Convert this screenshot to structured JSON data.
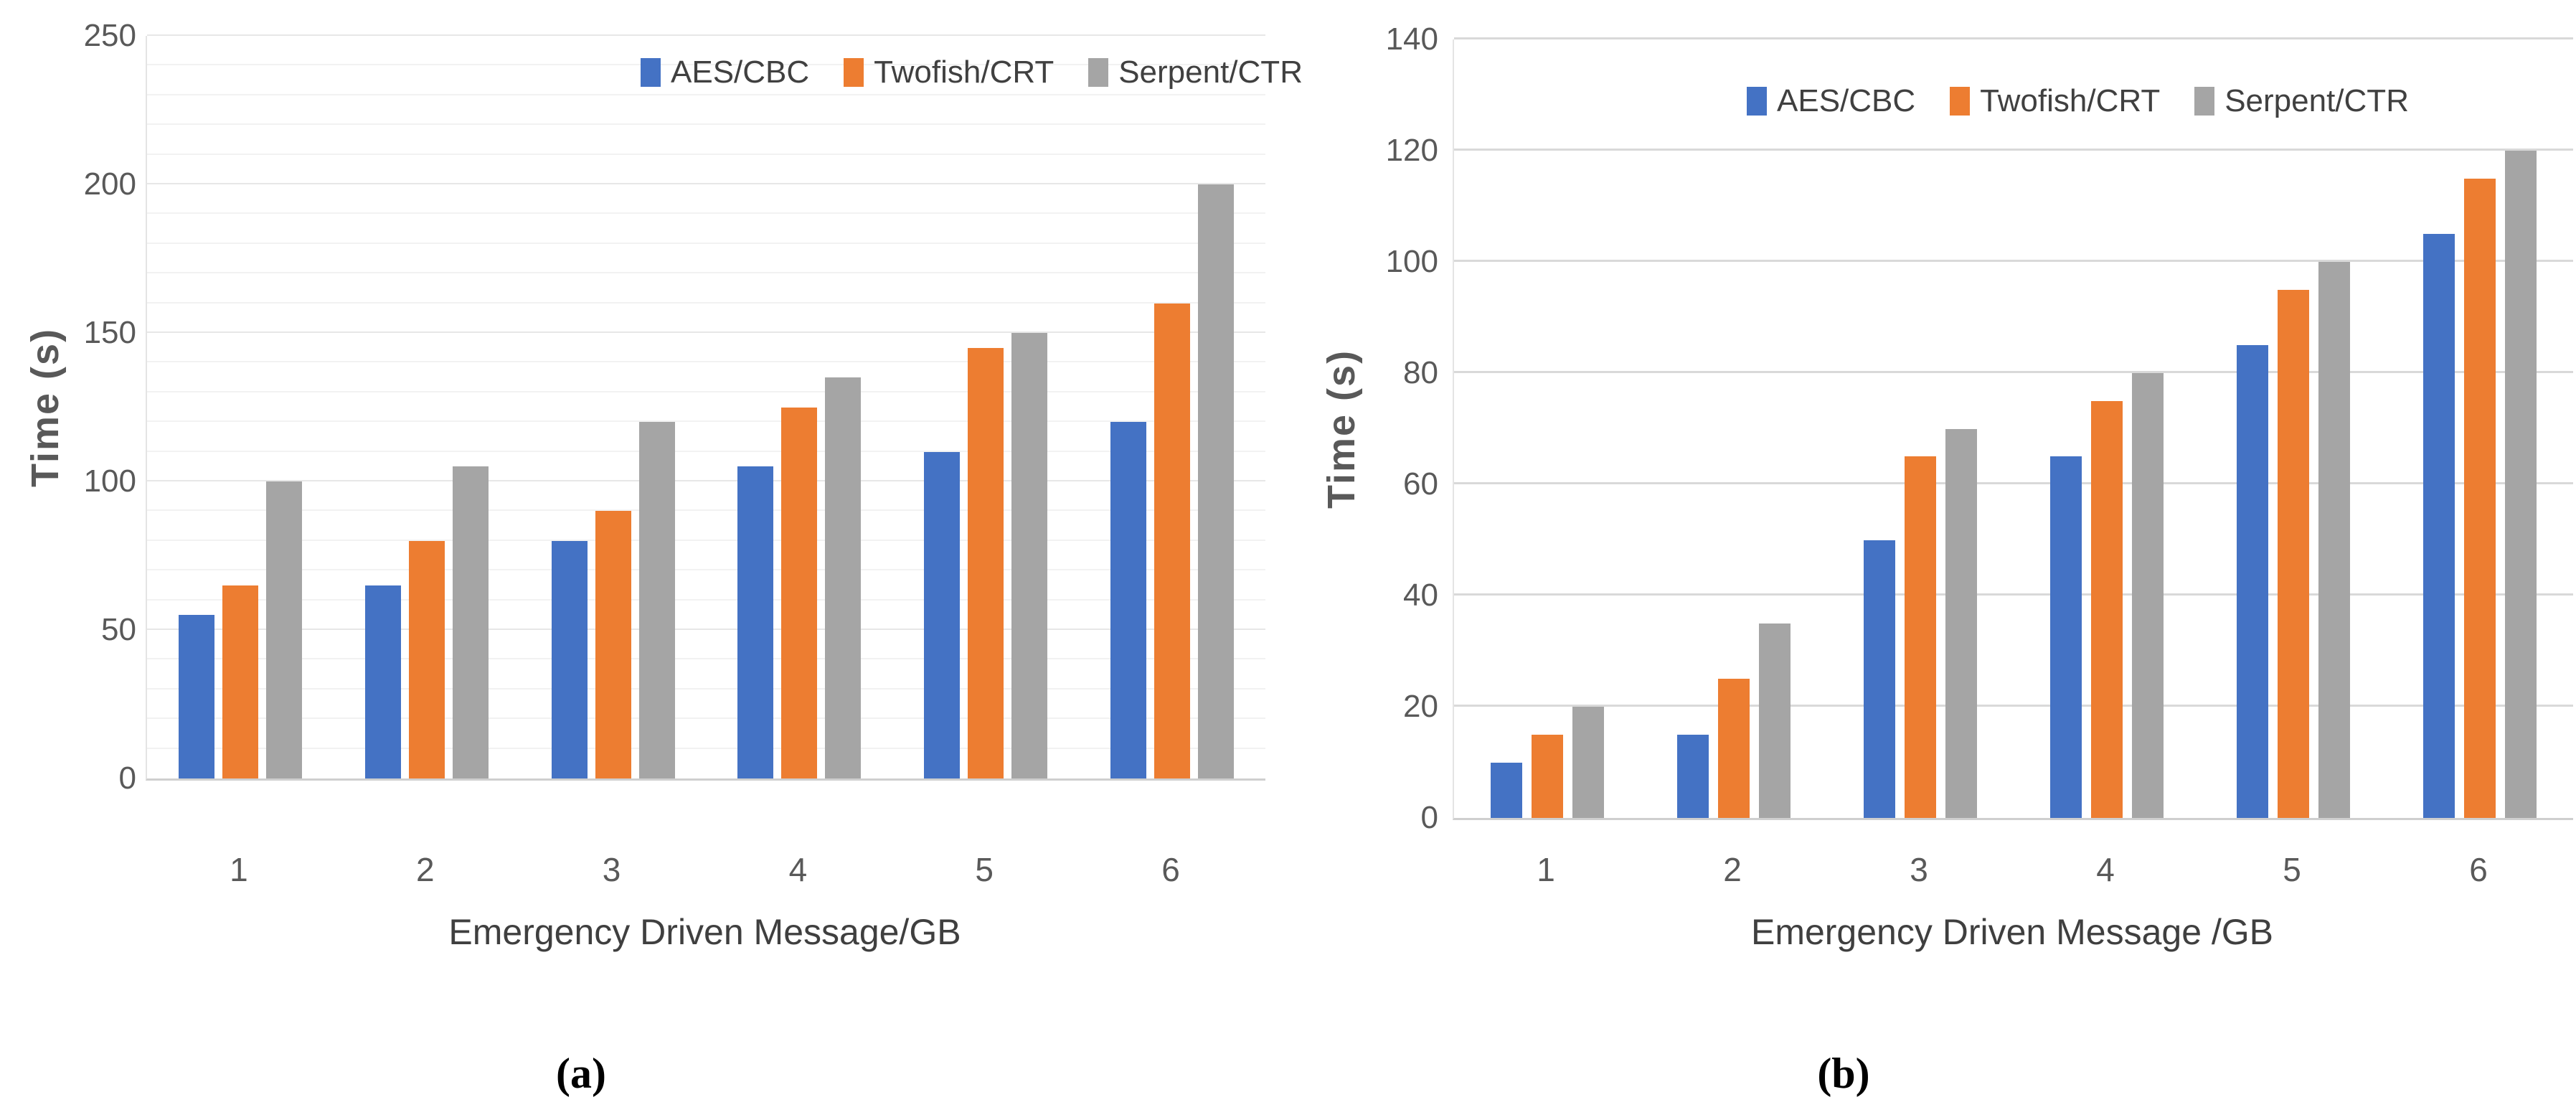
{
  "figure": {
    "captions": [
      "(a)",
      "(b)"
    ]
  },
  "chart_data": [
    {
      "type": "bar",
      "panel": "a",
      "title": "",
      "categories": [
        "1",
        "2",
        "3",
        "4",
        "5",
        "6"
      ],
      "xlabel": "Emergency Driven Message/GB",
      "ylabel": "Time (s)",
      "ylim": [
        0,
        250
      ],
      "tick_step": 50,
      "grid_minor_step": 10,
      "grid": "horizontal",
      "legend_position": "top-inside",
      "ytick_labels": [
        "0",
        "50",
        "100",
        "150",
        "200",
        "250"
      ],
      "series": [
        {
          "name": "AES/CBC",
          "color": "#4472C4",
          "values": [
            55,
            65,
            80,
            105,
            110,
            120
          ]
        },
        {
          "name": "Twofish/CRT",
          "color": "#ED7D31",
          "values": [
            65,
            80,
            90,
            125,
            145,
            160
          ]
        },
        {
          "name": "Serpent/CTR",
          "color": "#A5A5A5",
          "values": [
            100,
            105,
            120,
            135,
            150,
            200
          ]
        }
      ]
    },
    {
      "type": "bar",
      "panel": "b",
      "title": "",
      "categories": [
        "1",
        "2",
        "3",
        "4",
        "5",
        "6"
      ],
      "xlabel": "Emergency Driven Message /GB",
      "ylabel": "Time (s)",
      "ylim": [
        0,
        140
      ],
      "tick_step": 20,
      "grid_minor_step": 20,
      "grid": "horizontal",
      "legend_position": "top-inside",
      "ytick_labels": [
        "0",
        "20",
        "40",
        "60",
        "80",
        "100",
        "120",
        "140"
      ],
      "series": [
        {
          "name": "AES/CBC",
          "color": "#4472C4",
          "values": [
            10,
            15,
            50,
            65,
            85,
            105
          ]
        },
        {
          "name": "Twofish/CRT",
          "color": "#ED7D31",
          "values": [
            15,
            25,
            65,
            75,
            95,
            115
          ]
        },
        {
          "name": "Serpent/CTR",
          "color": "#A5A5A5",
          "values": [
            20,
            35,
            70,
            80,
            100,
            120
          ]
        }
      ]
    }
  ]
}
